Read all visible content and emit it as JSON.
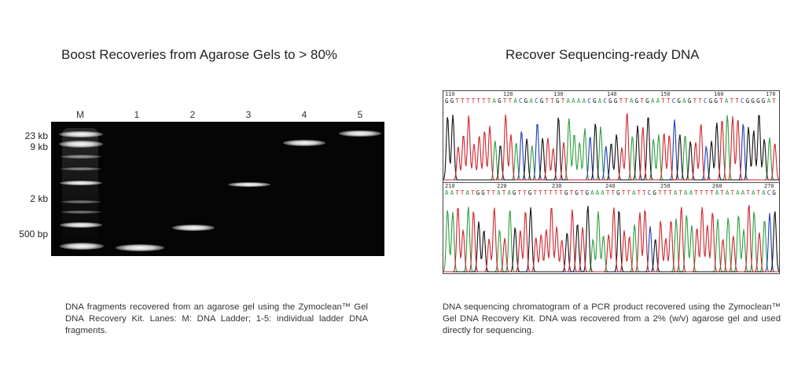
{
  "gel_panel": {
    "title": "Boost Recoveries from Agarose Gels to > 80%",
    "lane_labels": [
      "M",
      "1",
      "2",
      "3",
      "4",
      "5"
    ],
    "size_labels": [
      "23 kb",
      "9 kb",
      "2 kb",
      "500 bp"
    ],
    "caption": "DNA fragments recovered from an agarose gel using the Zymoclean™ Gel DNA Recovery Kit. Lanes: M: DNA Ladder; 1-5: individual ladder DNA fragments."
  },
  "sequencing_panel": {
    "title": "Recover Sequencing-ready DNA",
    "top_positions": [
      "110",
      "120",
      "130",
      "140",
      "150",
      "160",
      "170"
    ],
    "top_sequence": "GGTTTTTTTAGTTACGACGTTGTAAAACGACGGTTAGTGAATTCGAGTTCGGTATTCGGGGAT",
    "bottom_positions": [
      "210",
      "220",
      "230",
      "240",
      "250",
      "260",
      "270"
    ],
    "bottom_sequence": "AATTATGGTTATAGTTGTTTTTTGTGTGAAATTGTTATTCGTTTATAATTTTATATAATATACG",
    "base_colors": {
      "A": "#2e9e3e",
      "C": "#1f3fb5",
      "G": "#111111",
      "T": "#d0242c"
    },
    "caption": "DNA sequencing chromatogram of a PCR product recovered using the Zymoclean™ Gel DNA Recovery Kit.  DNA was recovered from a 2% (w/v) agarose gel and used directly for sequencing."
  }
}
